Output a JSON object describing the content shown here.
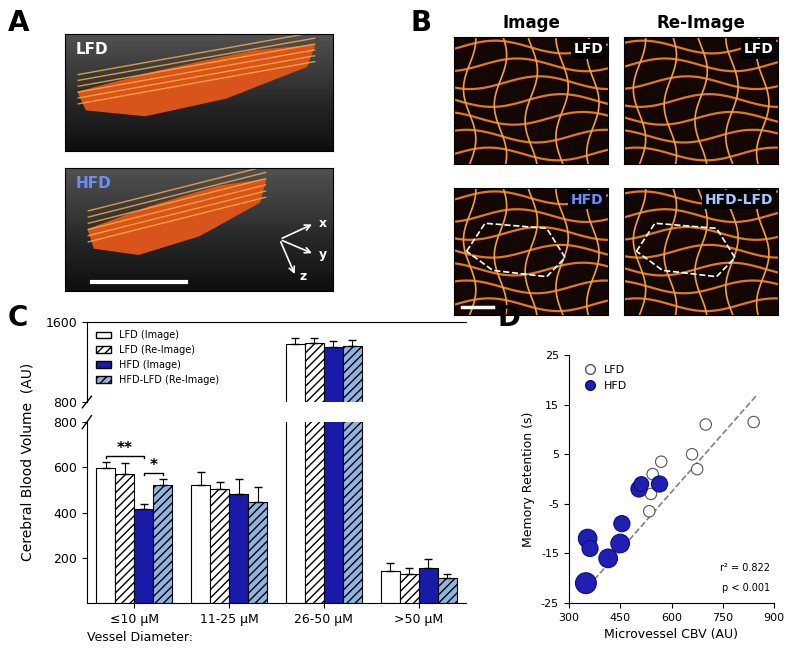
{
  "panel_labels": [
    "A",
    "B",
    "C",
    "D"
  ],
  "images": {
    "panel_a": {
      "labels": [
        "LFD",
        "HFD"
      ],
      "axes": [
        "x",
        "y",
        "z"
      ]
    },
    "panel_b": {
      "columns": [
        "Image",
        "Re-Image"
      ],
      "labels": [
        [
          "LFD",
          "LFD"
        ],
        [
          "HFD",
          "HFD-LFD"
        ]
      ]
    }
  },
  "chart_data": [
    {
      "type": "bar",
      "ylabel": "Cerebral Blood Volume  (AU)",
      "xlabel": "Vessel Diameter:",
      "categories": [
        "≤10 μM",
        "11-25 μM",
        "26-50 μM",
        ">50 μM"
      ],
      "ylim": [
        0,
        1600
      ],
      "y_break": 800,
      "yticks": [
        200,
        400,
        600,
        800,
        1600
      ],
      "legend": "upper left",
      "series": [
        {
          "name": "LFD (Image)",
          "color": "#ffffff",
          "values": [
            595,
            520,
            1380,
            140
          ],
          "errors": [
            30,
            60,
            60,
            35
          ]
        },
        {
          "name": "LFD (Re-Image)",
          "color": "#ffffff",
          "values": [
            570,
            505,
            1390,
            130
          ],
          "errors": [
            50,
            30,
            50,
            25
          ]
        },
        {
          "name": "HFD (Image)",
          "color": "#1a1aa8",
          "values": [
            415,
            480,
            1350,
            155
          ],
          "errors": [
            25,
            70,
            60,
            40
          ]
        },
        {
          "name": "HFD-LFD (Re-Image)",
          "color": "#8fb4e0",
          "values": [
            520,
            445,
            1360,
            110
          ],
          "errors": [
            30,
            70,
            60,
            20
          ]
        }
      ],
      "significance": [
        {
          "category": 0,
          "from": 0,
          "to": 2,
          "text": "**"
        },
        {
          "category": 0,
          "from": 2,
          "to": 3,
          "text": "*"
        }
      ]
    },
    {
      "type": "scatter",
      "xlabel": "Microvessel CBV (AU)",
      "ylabel": "Memory Retention (s)",
      "xlim": [
        300,
        900
      ],
      "xticks": [
        300,
        450,
        600,
        750,
        900
      ],
      "ylim": [
        -25,
        25
      ],
      "yticks": [
        -25,
        -15,
        -5,
        5,
        15,
        25
      ],
      "legend": "upper left",
      "annotations": [
        "r² = 0.822",
        "p < 0.001"
      ],
      "fit_line": {
        "x": [
          340,
          850
        ],
        "y": [
          -23,
          17
        ]
      },
      "series": [
        {
          "name": "LFD",
          "color": "#ffffff",
          "x": [
            535,
            540,
            545,
            570,
            660,
            675,
            700,
            840
          ],
          "y": [
            -6.5,
            -3,
            1,
            3.5,
            5,
            2,
            11,
            11.5
          ],
          "sizes": [
            1.5,
            1.5,
            1.5,
            1.5,
            1.5,
            1.5,
            1.5,
            1.5
          ]
        },
        {
          "name": "HFD",
          "color": "#1f1fb4",
          "x": [
            350,
            355,
            362,
            415,
            450,
            455,
            505,
            512,
            565
          ],
          "y": [
            -21,
            -12,
            -14,
            -16,
            -13,
            -9,
            -2,
            -1,
            -1
          ],
          "sizes": [
            5,
            4,
            3,
            4,
            4,
            3,
            3,
            2.5,
            3
          ]
        }
      ]
    }
  ]
}
